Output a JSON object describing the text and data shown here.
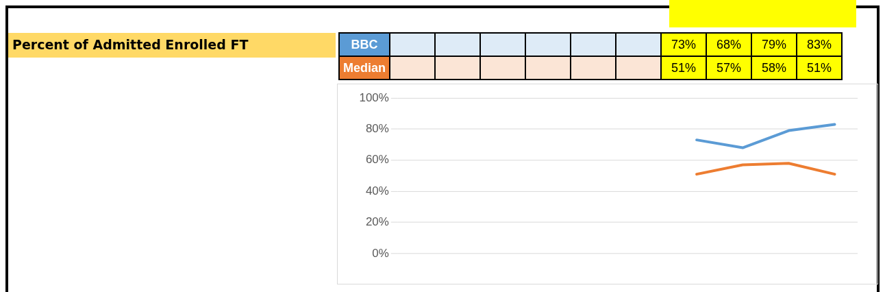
{
  "chart_data": {
    "type": "line",
    "title": "Percent of Admitted Enrolled FT",
    "categories": [
      null,
      null,
      null,
      null,
      null,
      null,
      null,
      null,
      null,
      null
    ],
    "series": [
      {
        "name": "BBC",
        "color": "#5b9bd5",
        "values": [
          null,
          null,
          null,
          null,
          null,
          null,
          73,
          68,
          79,
          83
        ],
        "value_labels": [
          null,
          null,
          null,
          null,
          null,
          null,
          "73%",
          "68%",
          "79%",
          "83%"
        ]
      },
      {
        "name": "Median",
        "color": "#ed7d31",
        "values": [
          null,
          null,
          null,
          null,
          null,
          null,
          51,
          57,
          58,
          51
        ],
        "value_labels": [
          null,
          null,
          null,
          null,
          null,
          null,
          "51%",
          "57%",
          "58%",
          "51%"
        ]
      }
    ],
    "ylim": [
      0,
      100
    ],
    "yticks": [
      {
        "value": 0,
        "label": "0%"
      },
      {
        "value": 20,
        "label": "20%"
      },
      {
        "value": 40,
        "label": "40%"
      },
      {
        "value": 60,
        "label": "60%"
      },
      {
        "value": 80,
        "label": "80%"
      },
      {
        "value": 100,
        "label": "100%"
      }
    ],
    "grid": "y",
    "marker": "none",
    "line_style": "solid"
  }
}
